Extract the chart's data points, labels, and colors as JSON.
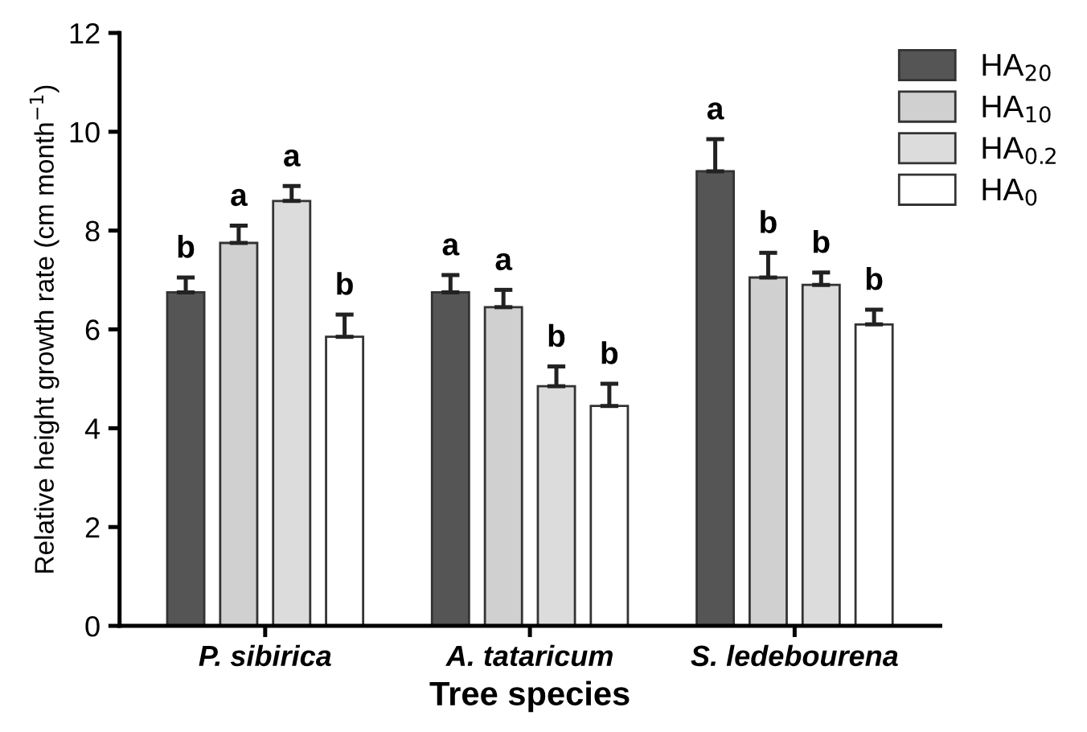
{
  "chart_data": {
    "type": "bar",
    "xlabel": "Tree species",
    "ylabel": "Relative height growth rate (cm month$^{−1}$)",
    "categories": [
      "P. sibirica",
      "A. tataricum",
      "S. ledebourena"
    ],
    "series": [
      {
        "name": "HA$_{20}$",
        "color": "#555555",
        "values": [
          6.75,
          6.75,
          9.2
        ],
        "errors": [
          0.3,
          0.35,
          0.65
        ],
        "value_labels": [
          "b",
          "a",
          "a"
        ]
      },
      {
        "name": "HA$_{10}$",
        "color": "#d0d0d0",
        "values": [
          7.75,
          6.45,
          7.05
        ],
        "errors": [
          0.35,
          0.35,
          0.5
        ],
        "value_labels": [
          "a",
          "a",
          "b"
        ]
      },
      {
        "name": "HA$_{0.2}$",
        "color": "#dcdcdc",
        "values": [
          8.6,
          4.85,
          6.9
        ],
        "errors": [
          0.3,
          0.4,
          0.25
        ],
        "value_labels": [
          "a",
          "b",
          "b"
        ]
      },
      {
        "name": "HA$_{0}$",
        "color": "#ffffff",
        "values": [
          5.85,
          4.45,
          6.1
        ],
        "errors": [
          0.45,
          0.45,
          0.3
        ],
        "value_labels": [
          "b",
          "b",
          "b"
        ]
      }
    ],
    "ylim": [
      0,
      12
    ],
    "yticks": [
      0,
      2,
      4,
      6,
      8,
      10,
      12
    ],
    "grid": false,
    "legend": "top right"
  }
}
